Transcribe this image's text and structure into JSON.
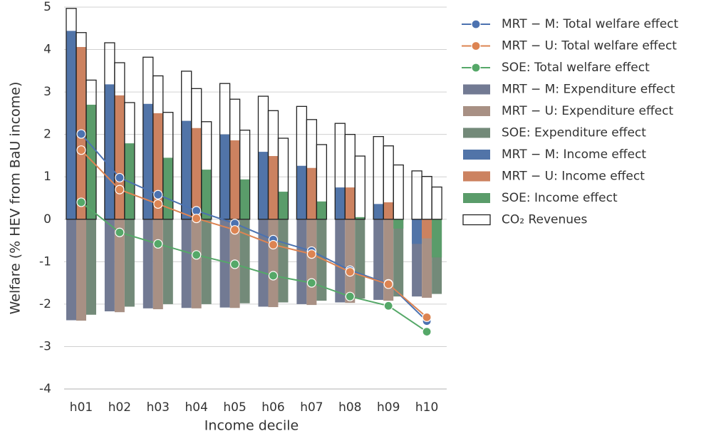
{
  "chart_data": {
    "type": "bar",
    "xlabel": "Income decile",
    "ylabel": "Welfare  (% HEV from BaU income)",
    "categories": [
      "h01",
      "h02",
      "h03",
      "h04",
      "h05",
      "h06",
      "h07",
      "h08",
      "h09",
      "h10"
    ],
    "ylim": [
      -4,
      5
    ],
    "yticks": [
      -4,
      -3,
      -2,
      -1,
      0,
      1,
      2,
      3,
      4,
      5
    ],
    "grid": true,
    "legend": "outside right",
    "series": [
      {
        "name": "MRT − M: Total welfare effect",
        "type": "line",
        "color": "#4c72b0",
        "values": [
          2.01,
          0.98,
          0.58,
          0.2,
          -0.1,
          -0.48,
          -0.75,
          -1.2,
          -1.52,
          -2.4
        ]
      },
      {
        "name": "MRT − U: Total welfare effect",
        "type": "line",
        "color": "#dd8452",
        "values": [
          1.63,
          0.7,
          0.36,
          0.02,
          -0.25,
          -0.6,
          -0.82,
          -1.24,
          -1.53,
          -2.31
        ]
      },
      {
        "name": "SOE: Total welfare effect",
        "type": "line",
        "color": "#55a868",
        "values": [
          0.4,
          -0.31,
          -0.58,
          -0.84,
          -1.06,
          -1.33,
          -1.5,
          -1.82,
          -2.04,
          -2.65
        ]
      },
      {
        "name": "MRT − M: Expenditure effect",
        "type": "bar",
        "color": "#727a93",
        "values": [
          -2.38,
          -2.17,
          -2.1,
          -2.09,
          -2.08,
          -2.06,
          -2.0,
          -1.96,
          -1.9,
          -1.82
        ]
      },
      {
        "name": "MRT − U: Expenditure effect",
        "type": "bar",
        "color": "#a89084",
        "values": [
          -2.39,
          -2.19,
          -2.12,
          -2.1,
          -2.09,
          -2.07,
          -2.02,
          -1.97,
          -1.92,
          -1.85
        ]
      },
      {
        "name": "SOE: Expenditure effect",
        "type": "bar",
        "color": "#738a79",
        "values": [
          -2.25,
          -2.06,
          -2.0,
          -2.0,
          -1.98,
          -1.96,
          -1.92,
          -1.87,
          -1.82,
          -1.76
        ]
      },
      {
        "name": "MRT − M: Income effect",
        "type": "bar",
        "color": "#5174a8",
        "values": [
          4.44,
          3.18,
          2.72,
          2.32,
          2.0,
          1.59,
          1.26,
          0.75,
          0.36,
          -0.58
        ]
      },
      {
        "name": "MRT − U: Income effect",
        "type": "bar",
        "color": "#cc8260",
        "values": [
          4.06,
          2.92,
          2.5,
          2.15,
          1.86,
          1.49,
          1.21,
          0.75,
          0.4,
          -0.45
        ]
      },
      {
        "name": "SOE: Income effect",
        "type": "bar",
        "color": "#5a9c6a",
        "values": [
          2.7,
          1.79,
          1.45,
          1.17,
          0.94,
          0.65,
          0.42,
          0.05,
          -0.22,
          -0.9
        ]
      }
    ],
    "revenues": {
      "name": "CO₂ Revenues",
      "color": "none",
      "edgecolor": "#222222",
      "values": [
        [
          4.97,
          4.4,
          3.28
        ],
        [
          4.16,
          3.69,
          2.75
        ],
        [
          3.82,
          3.38,
          2.52
        ],
        [
          3.49,
          3.08,
          2.3
        ],
        [
          3.2,
          2.83,
          2.1
        ],
        [
          2.9,
          2.56,
          1.91
        ],
        [
          2.66,
          2.35,
          1.76
        ],
        [
          2.26,
          2.0,
          1.49
        ],
        [
          1.95,
          1.73,
          1.28
        ],
        [
          1.14,
          1.01,
          0.76
        ]
      ]
    }
  }
}
